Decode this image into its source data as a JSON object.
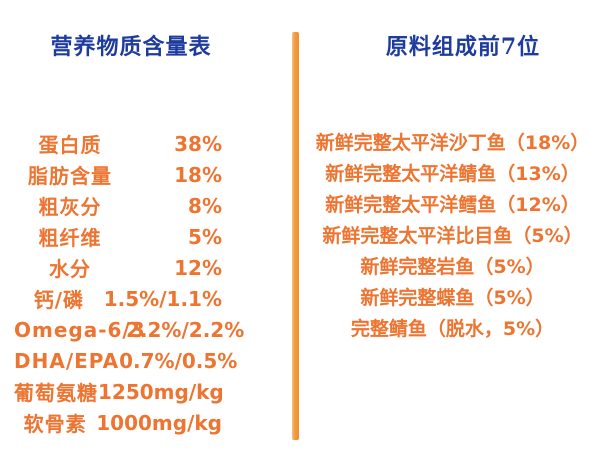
{
  "left_panel": {
    "title": "营养物质含量表",
    "rows": [
      {
        "label": "蛋白质",
        "value": "38%"
      },
      {
        "label": "脂肪含量",
        "value": "18%"
      },
      {
        "label": "粗灰分",
        "value": "8%"
      },
      {
        "label": "粗纤维",
        "value": "5%"
      },
      {
        "label": "水分",
        "value": "12%"
      },
      {
        "label": "钙/磷",
        "value": "1.5%/1.1%"
      },
      {
        "label": "Omega-6/3",
        "value": "2.2%/2.2%"
      },
      {
        "label": "DHA/EPA",
        "value": "0.7%/0.5%"
      },
      {
        "label": "葡萄氨糖",
        "value": "1250mg/kg"
      },
      {
        "label": "软骨素",
        "value": "1000mg/kg"
      }
    ]
  },
  "right_panel": {
    "title": "原料组成前7位",
    "items": [
      "新鲜完整太平洋沙丁鱼（18%）",
      "新鲜完整太平洋鲭鱼（13%）",
      "新鲜完整太平洋鳕鱼（12%）",
      "新鲜完整太平洋比目鱼（5%）",
      "新鲜完整岩鱼（5%）",
      "新鲜完整蝶鱼（5%）",
      "完整鲭鱼（脱水，5%）"
    ]
  },
  "colors": {
    "title_blue": "#1e3c9e",
    "body_orange": "#ed7531",
    "divider_orange": "#f29d40",
    "background": "#ffffff"
  }
}
